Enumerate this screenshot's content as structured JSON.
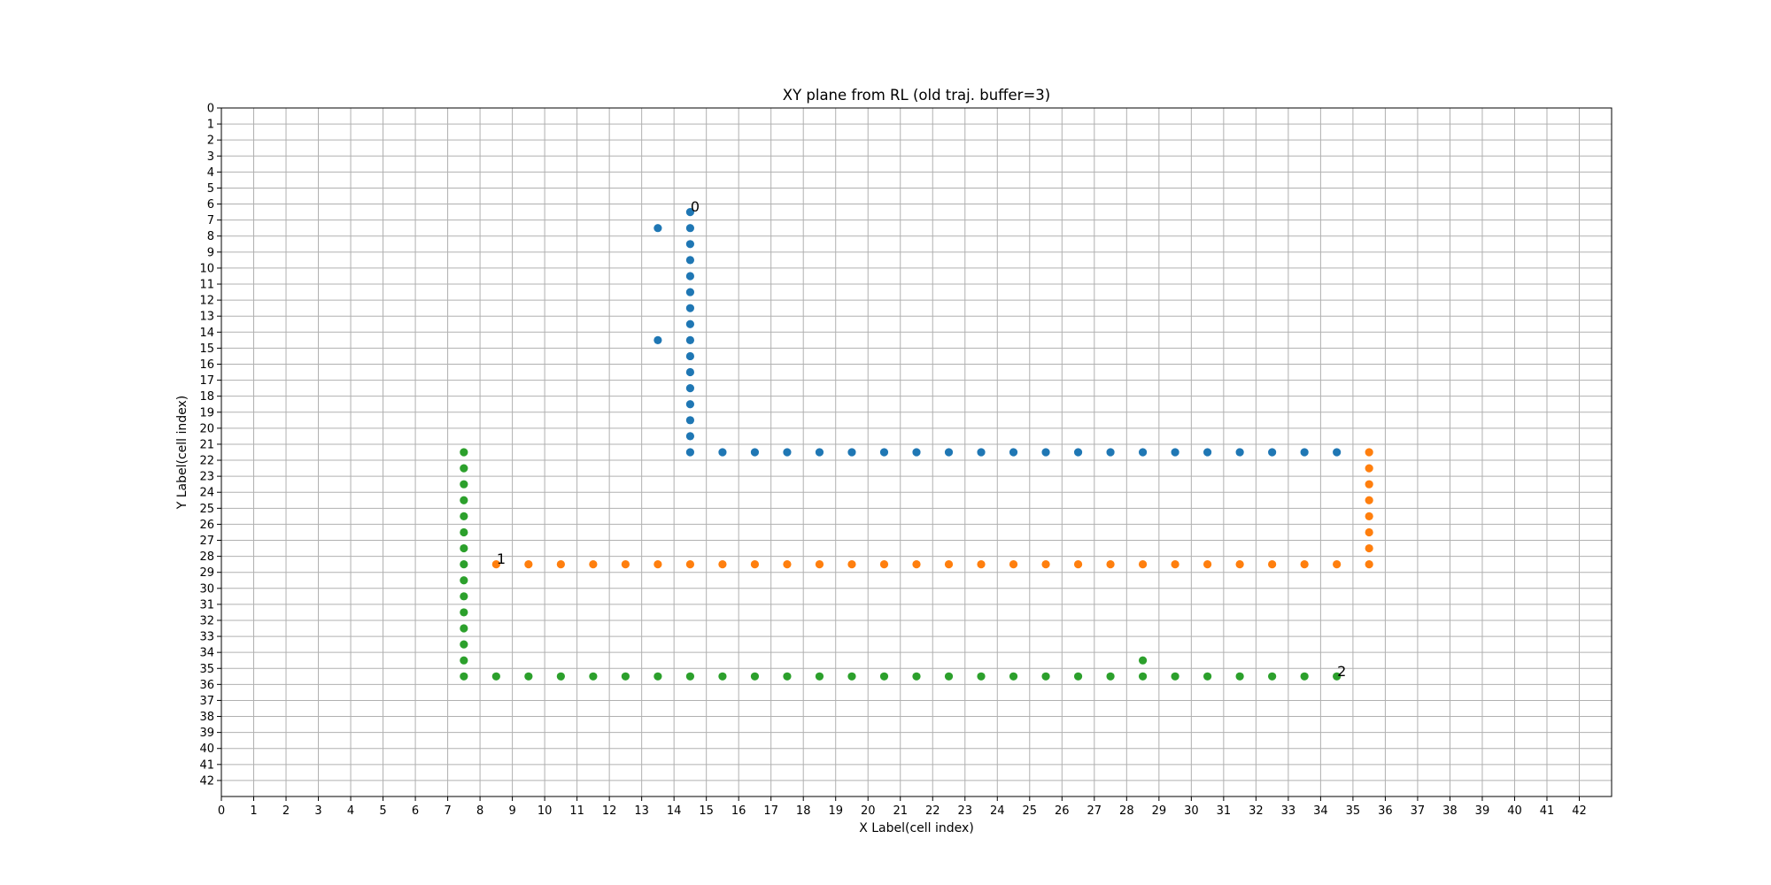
{
  "chart_data": {
    "type": "scatter",
    "title": "XY plane  from RL (old traj. buffer=3)",
    "xlabel": "X Label(cell index)",
    "ylabel": "Y Label(cell index)",
    "xlim": [
      0,
      43
    ],
    "ylim": [
      0,
      43
    ],
    "y_inverted": true,
    "grid": true,
    "x_ticks": [
      0,
      1,
      2,
      3,
      4,
      5,
      6,
      7,
      8,
      9,
      10,
      11,
      12,
      13,
      14,
      15,
      16,
      17,
      18,
      19,
      20,
      21,
      22,
      23,
      24,
      25,
      26,
      27,
      28,
      29,
      30,
      31,
      32,
      33,
      34,
      35,
      36,
      37,
      38,
      39,
      40,
      41,
      42
    ],
    "y_ticks": [
      0,
      1,
      2,
      3,
      4,
      5,
      6,
      7,
      8,
      9,
      10,
      11,
      12,
      13,
      14,
      15,
      16,
      17,
      18,
      19,
      20,
      21,
      22,
      23,
      24,
      25,
      26,
      27,
      28,
      29,
      30,
      31,
      32,
      33,
      34,
      35,
      36,
      37,
      38,
      39,
      40,
      41,
      42
    ],
    "series": [
      {
        "color": "#1f77b4",
        "points": [
          [
            14.5,
            6.5
          ],
          [
            14.5,
            7.5
          ],
          [
            14.5,
            8.5
          ],
          [
            14.5,
            9.5
          ],
          [
            14.5,
            10.5
          ],
          [
            14.5,
            11.5
          ],
          [
            14.5,
            12.5
          ],
          [
            14.5,
            13.5
          ],
          [
            14.5,
            14.5
          ],
          [
            14.5,
            15.5
          ],
          [
            14.5,
            16.5
          ],
          [
            14.5,
            17.5
          ],
          [
            14.5,
            18.5
          ],
          [
            14.5,
            19.5
          ],
          [
            14.5,
            20.5
          ],
          [
            14.5,
            21.5
          ],
          [
            13.5,
            7.5
          ],
          [
            13.5,
            14.5
          ],
          [
            15.5,
            21.5
          ],
          [
            16.5,
            21.5
          ],
          [
            17.5,
            21.5
          ],
          [
            18.5,
            21.5
          ],
          [
            19.5,
            21.5
          ],
          [
            20.5,
            21.5
          ],
          [
            21.5,
            21.5
          ],
          [
            22.5,
            21.5
          ],
          [
            23.5,
            21.5
          ],
          [
            24.5,
            21.5
          ],
          [
            25.5,
            21.5
          ],
          [
            26.5,
            21.5
          ],
          [
            27.5,
            21.5
          ],
          [
            28.5,
            21.5
          ],
          [
            29.5,
            21.5
          ],
          [
            30.5,
            21.5
          ],
          [
            31.5,
            21.5
          ],
          [
            32.5,
            21.5
          ],
          [
            33.5,
            21.5
          ],
          [
            34.5,
            21.5
          ]
        ]
      },
      {
        "color": "#ff7f0e",
        "points": [
          [
            35.5,
            21.5
          ],
          [
            35.5,
            22.5
          ],
          [
            35.5,
            23.5
          ],
          [
            35.5,
            24.5
          ],
          [
            35.5,
            25.5
          ],
          [
            35.5,
            26.5
          ],
          [
            35.5,
            27.5
          ],
          [
            35.5,
            28.5
          ],
          [
            8.5,
            28.5
          ],
          [
            9.5,
            28.5
          ],
          [
            10.5,
            28.5
          ],
          [
            11.5,
            28.5
          ],
          [
            12.5,
            28.5
          ],
          [
            13.5,
            28.5
          ],
          [
            14.5,
            28.5
          ],
          [
            15.5,
            28.5
          ],
          [
            16.5,
            28.5
          ],
          [
            17.5,
            28.5
          ],
          [
            18.5,
            28.5
          ],
          [
            19.5,
            28.5
          ],
          [
            20.5,
            28.5
          ],
          [
            21.5,
            28.5
          ],
          [
            22.5,
            28.5
          ],
          [
            23.5,
            28.5
          ],
          [
            24.5,
            28.5
          ],
          [
            25.5,
            28.5
          ],
          [
            26.5,
            28.5
          ],
          [
            27.5,
            28.5
          ],
          [
            28.5,
            28.5
          ],
          [
            29.5,
            28.5
          ],
          [
            30.5,
            28.5
          ],
          [
            31.5,
            28.5
          ],
          [
            32.5,
            28.5
          ],
          [
            33.5,
            28.5
          ],
          [
            34.5,
            28.5
          ]
        ]
      },
      {
        "color": "#2ca02c",
        "points": [
          [
            7.5,
            21.5
          ],
          [
            7.5,
            22.5
          ],
          [
            7.5,
            23.5
          ],
          [
            7.5,
            24.5
          ],
          [
            7.5,
            25.5
          ],
          [
            7.5,
            26.5
          ],
          [
            7.5,
            27.5
          ],
          [
            7.5,
            28.5
          ],
          [
            7.5,
            29.5
          ],
          [
            7.5,
            30.5
          ],
          [
            7.5,
            31.5
          ],
          [
            7.5,
            32.5
          ],
          [
            7.5,
            33.5
          ],
          [
            7.5,
            34.5
          ],
          [
            7.5,
            35.5
          ],
          [
            8.5,
            35.5
          ],
          [
            9.5,
            35.5
          ],
          [
            10.5,
            35.5
          ],
          [
            11.5,
            35.5
          ],
          [
            12.5,
            35.5
          ],
          [
            13.5,
            35.5
          ],
          [
            14.5,
            35.5
          ],
          [
            15.5,
            35.5
          ],
          [
            16.5,
            35.5
          ],
          [
            17.5,
            35.5
          ],
          [
            18.5,
            35.5
          ],
          [
            19.5,
            35.5
          ],
          [
            20.5,
            35.5
          ],
          [
            21.5,
            35.5
          ],
          [
            22.5,
            35.5
          ],
          [
            23.5,
            35.5
          ],
          [
            24.5,
            35.5
          ],
          [
            25.5,
            35.5
          ],
          [
            26.5,
            35.5
          ],
          [
            27.5,
            35.5
          ],
          [
            28.5,
            35.5
          ],
          [
            29.5,
            35.5
          ],
          [
            30.5,
            35.5
          ],
          [
            31.5,
            35.5
          ],
          [
            32.5,
            35.5
          ],
          [
            33.5,
            35.5
          ],
          [
            34.5,
            35.5
          ],
          [
            28.5,
            34.5
          ]
        ]
      }
    ],
    "annotations": [
      {
        "text": "0",
        "x": 14.5,
        "y": 6.5
      },
      {
        "text": "1",
        "x": 8.5,
        "y": 28.5
      },
      {
        "text": "2",
        "x": 34.5,
        "y": 35.5
      }
    ]
  }
}
